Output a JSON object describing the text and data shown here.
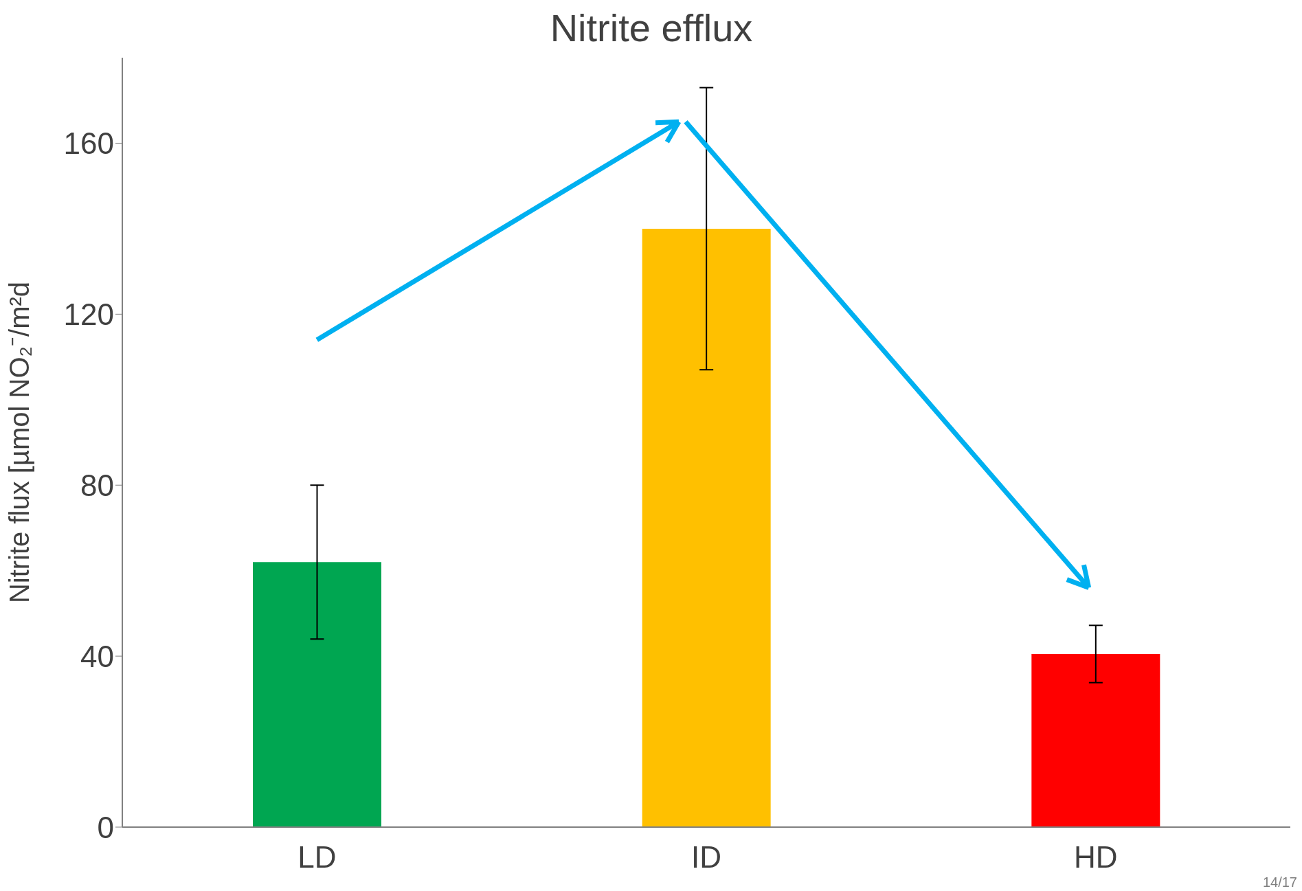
{
  "chart_data": {
    "type": "bar",
    "title": "Nitrite efflux",
    "ylabel": "Nitrite flux [µmol NO₂⁻/m²d",
    "categories": [
      "LD",
      "ID",
      "HD"
    ],
    "values": [
      62,
      140,
      40.5
    ],
    "errors": [
      18,
      33,
      6.7
    ],
    "colors": [
      "#00a651",
      "#ffc000",
      "#ff0000"
    ],
    "ylim": [
      0,
      180
    ],
    "yticks": [
      0,
      40,
      80,
      120,
      160
    ],
    "annotations": [
      "14/17"
    ]
  }
}
